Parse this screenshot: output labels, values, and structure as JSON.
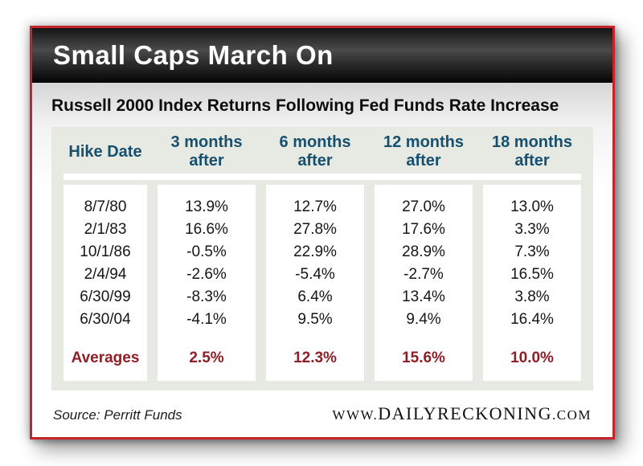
{
  "window": {
    "title": "Small Caps March On"
  },
  "subtitle": "Russell 2000 Index Returns Following Fed Funds Rate Increase",
  "colors": {
    "border_red": "#c4242b",
    "header_blue": "#17506f",
    "averages_red": "#8e1f26",
    "panel_gray": "#e7eae3",
    "title_bar_black": "#1a1a1a"
  },
  "table": {
    "headers": [
      {
        "line1": "Hike Date",
        "line2": ""
      },
      {
        "line1": "3 months",
        "line2": "after"
      },
      {
        "line1": "6 months",
        "line2": "after"
      },
      {
        "line1": "12 months",
        "line2": "after"
      },
      {
        "line1": "18 months",
        "line2": "after"
      }
    ],
    "rows": [
      {
        "date": "8/7/80",
        "values": [
          "13.9%",
          "12.7%",
          "27.0%",
          "13.0%"
        ]
      },
      {
        "date": "2/1/83",
        "values": [
          "16.6%",
          "27.8%",
          "17.6%",
          "3.3%"
        ]
      },
      {
        "date": "10/1/86",
        "values": [
          "-0.5%",
          "22.9%",
          "28.9%",
          "7.3%"
        ]
      },
      {
        "date": "2/4/94",
        "values": [
          "-2.6%",
          "-5.4%",
          "-2.7%",
          "16.5%"
        ]
      },
      {
        "date": "6/30/99",
        "values": [
          "-8.3%",
          "6.4%",
          "13.4%",
          "3.8%"
        ]
      },
      {
        "date": "6/30/04",
        "values": [
          "-4.1%",
          "9.5%",
          "9.4%",
          "16.4%"
        ]
      }
    ],
    "averages": {
      "label": "Averages",
      "values": [
        "2.5%",
        "12.3%",
        "15.6%",
        "10.0%"
      ]
    }
  },
  "footer": {
    "source": "Source: Perritt Funds",
    "site_prefix": "WWW.",
    "site_name": "DAILYRECKONING",
    "site_suffix": ".COM"
  },
  "chart_data": {
    "type": "table",
    "title": "Small Caps March On",
    "subtitle": "Russell 2000 Index Returns Following Fed Funds Rate Increase",
    "columns": [
      "Hike Date",
      "3 months after",
      "6 months after",
      "12 months after",
      "18 months after"
    ],
    "rows": [
      [
        "8/7/80",
        13.9,
        12.7,
        27.0,
        13.0
      ],
      [
        "2/1/83",
        16.6,
        27.8,
        17.6,
        3.3
      ],
      [
        "10/1/86",
        -0.5,
        22.9,
        28.9,
        7.3
      ],
      [
        "2/4/94",
        -2.6,
        -5.4,
        -2.7,
        16.5
      ],
      [
        "6/30/99",
        -8.3,
        6.4,
        13.4,
        3.8
      ],
      [
        "6/30/04",
        -4.1,
        9.5,
        9.4,
        16.4
      ]
    ],
    "averages_row": [
      "Averages",
      2.5,
      12.3,
      15.6,
      10.0
    ],
    "units": "percent",
    "source": "Source: Perritt Funds"
  }
}
